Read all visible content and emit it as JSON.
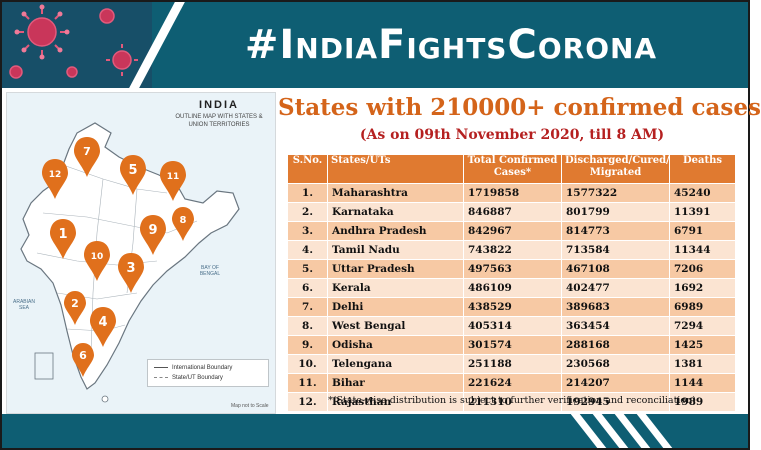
{
  "header": {
    "hashtag": "#IndiaFightsCorona",
    "accent_color": "#0e5e73",
    "decoration": "coronavirus-particles"
  },
  "map": {
    "title": "INDIA",
    "subtitle": "OUTLINE MAP WITH STATES & UNION TERRITORIES",
    "sea_labels": [
      "ARABIAN SEA",
      "BAY OF BENGAL"
    ],
    "legend": [
      "International Boundary",
      "State/UT Boundary"
    ],
    "scale_note": "Map not to Scale",
    "pins": [
      "1",
      "2",
      "3",
      "4",
      "5",
      "6",
      "7",
      "8",
      "9",
      "10",
      "11",
      "12"
    ],
    "pin_color": "#e0701c"
  },
  "content": {
    "title": "States with 210000+ confirmed cases",
    "subtitle": "(As on 09th November 2020, till 8 AM)",
    "note": "*(State-wise distribution is subject to further verification and reconciliation)"
  },
  "table": {
    "headers": [
      "S.No.",
      "States/UTs",
      "Total Confirmed Cases*",
      "Discharged/Cured/ Migrated",
      "Deaths"
    ],
    "rows": [
      [
        "1.",
        "Maharashtra",
        "1719858",
        "1577322",
        "45240"
      ],
      [
        "2.",
        "Karnataka",
        "846887",
        "801799",
        "11391"
      ],
      [
        "3.",
        "Andhra Pradesh",
        "842967",
        "814773",
        "6791"
      ],
      [
        "4.",
        "Tamil Nadu",
        "743822",
        "713584",
        "11344"
      ],
      [
        "5.",
        "Uttar Pradesh",
        "497563",
        "467108",
        "7206"
      ],
      [
        "6.",
        "Kerala",
        "486109",
        "402477",
        "1692"
      ],
      [
        "7.",
        "Delhi",
        "438529",
        "389683",
        "6989"
      ],
      [
        "8.",
        "West Bengal",
        "405314",
        "363454",
        "7294"
      ],
      [
        "9.",
        "Odisha",
        "301574",
        "288168",
        "1425"
      ],
      [
        "10.",
        "Telengana",
        "251188",
        "230568",
        "1381"
      ],
      [
        "11.",
        "Bihar",
        "221624",
        "214207",
        "1144"
      ],
      [
        "12.",
        "Rajasthan",
        "211310",
        "192945",
        "1989"
      ]
    ],
    "header_color": "#e07a30",
    "row_color_odd": "#f7c9a4",
    "row_color_even": "#fbe4d2"
  }
}
